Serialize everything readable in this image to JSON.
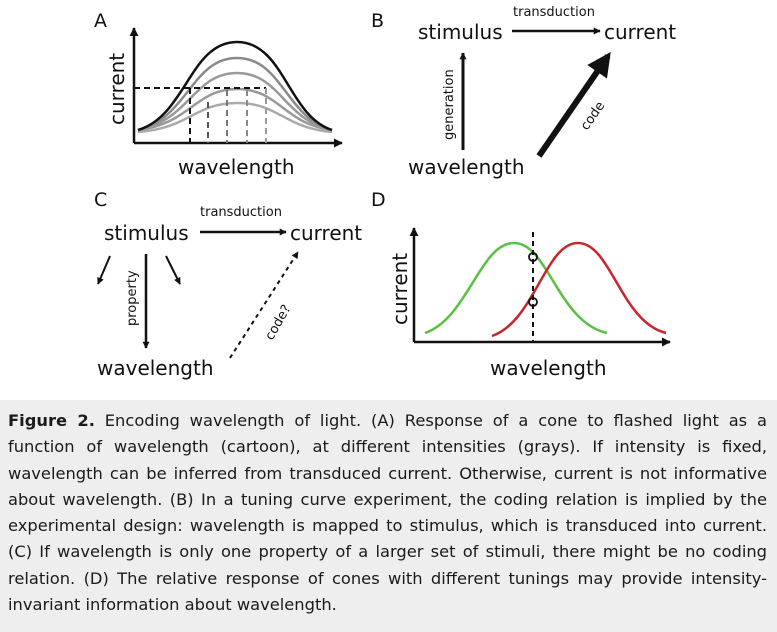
{
  "panels": {
    "A": {
      "letter": "A",
      "ylabel": "current",
      "xlabel": "wavelength"
    },
    "B": {
      "letter": "B",
      "stimulus": "stimulus",
      "current": "current",
      "wavelength": "wavelength",
      "transduction": "transduction",
      "generation": "generation",
      "code": "code"
    },
    "C": {
      "letter": "C",
      "stimulus": "stimulus",
      "current": "current",
      "wavelength": "wavelength",
      "transduction": "transduction",
      "property": "property",
      "code": "code?"
    },
    "D": {
      "letter": "D",
      "ylabel": "current",
      "xlabel": "wavelength",
      "colors": {
        "green": "#5cbf45",
        "red": "#c8262c"
      }
    }
  },
  "caption": {
    "label": "Figure 2.",
    "text": "Encoding wavelength of light. (A) Response of a cone to flashed light as a function of wavelength (cartoon), at different intensities (grays). If intensity is fixed, wavelength can be inferred from transduced current. Otherwise, current is not informative about wavelength. (B) In a tuning curve experiment, the coding relation is implied by the experimental design: wavelength is mapped to stimulus, which is transduced into current. (C) If wavelength is only one property of a larger set of stimuli, there might be no coding relation. (D) The relative response of cones with different tunings may provide intensity-invariant information about wavelength."
  }
}
